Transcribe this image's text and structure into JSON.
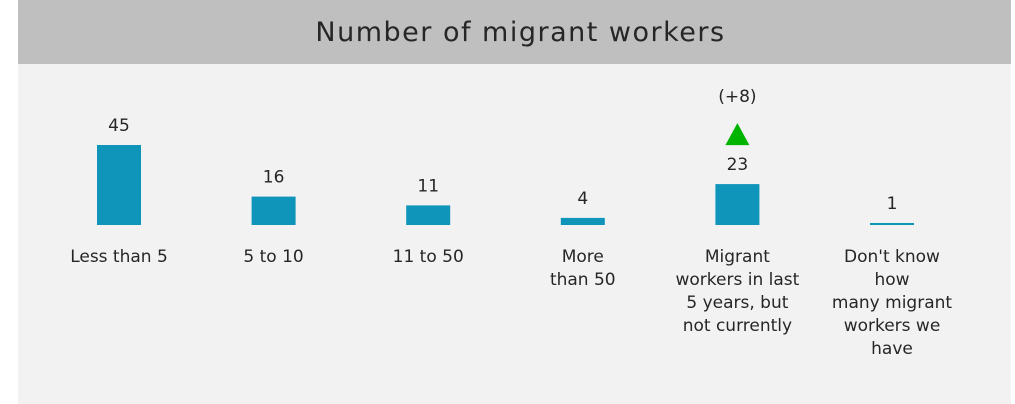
{
  "chart_data": {
    "type": "bar",
    "title": "Number of migrant workers",
    "categories": [
      [
        "Less than 5"
      ],
      [
        "5 to 10"
      ],
      [
        "11 to 50"
      ],
      [
        "More",
        "than 50"
      ],
      [
        "Migrant",
        "workers in last",
        "5 years, but",
        "not currently"
      ],
      [
        "Don't know",
        "how",
        "many migrant",
        "workers we",
        "have"
      ]
    ],
    "values": [
      45,
      16,
      11,
      4,
      23,
      1
    ],
    "value_labels": [
      "45",
      "16",
      "11",
      "4",
      "23",
      "1"
    ],
    "annotations": [
      {
        "category_index": 4,
        "change_label": "(+8)",
        "direction": "up",
        "color": "#00b400"
      }
    ],
    "colors": {
      "bar": "#0f95ba",
      "background": "#f2f2f2",
      "title_bar": "#bfbfbf"
    },
    "grid": false,
    "legend": "none",
    "ylim": [
      0,
      45
    ]
  }
}
